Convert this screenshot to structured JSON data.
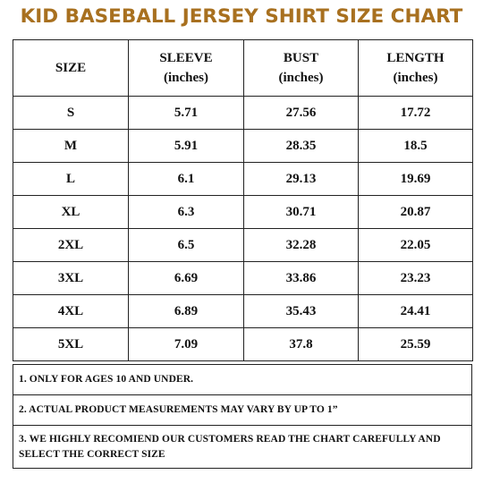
{
  "title": "KID BASEBALL JERSEY SHIRT SIZE CHART",
  "header": {
    "size": "SIZE",
    "sleeve": "SLEEVE",
    "bust": "BUST",
    "length": "LENGTH",
    "unit": "(inches)"
  },
  "rows": [
    {
      "size": "S",
      "sleeve": "5.71",
      "bust": "27.56",
      "length": "17.72"
    },
    {
      "size": "M",
      "sleeve": "5.91",
      "bust": "28.35",
      "length": "18.5"
    },
    {
      "size": "L",
      "sleeve": "6.1",
      "bust": "29.13",
      "length": "19.69"
    },
    {
      "size": "XL",
      "sleeve": "6.3",
      "bust": "30.71",
      "length": "20.87"
    },
    {
      "size": "2XL",
      "sleeve": "6.5",
      "bust": "32.28",
      "length": "22.05"
    },
    {
      "size": "3XL",
      "sleeve": "6.69",
      "bust": "33.86",
      "length": "23.23"
    },
    {
      "size": "4XL",
      "sleeve": "6.89",
      "bust": "35.43",
      "length": "24.41"
    },
    {
      "size": "5XL",
      "sleeve": "7.09",
      "bust": "37.8",
      "length": "25.59"
    }
  ],
  "notes": [
    "1. ONLY FOR AGES 10 AND UNDER.",
    "2. ACTUAL PRODUCT MEASUREMENTS MAY VARY BY UP TO 1”",
    "3. WE HIGHLY RECOMIEND OUR CUSTOMERS READ THE CHART CAREFULLY AND SELECT THE CORRECT SIZE"
  ],
  "colors": {
    "title": "#a8701f",
    "border": "#222222",
    "text": "#111111"
  }
}
